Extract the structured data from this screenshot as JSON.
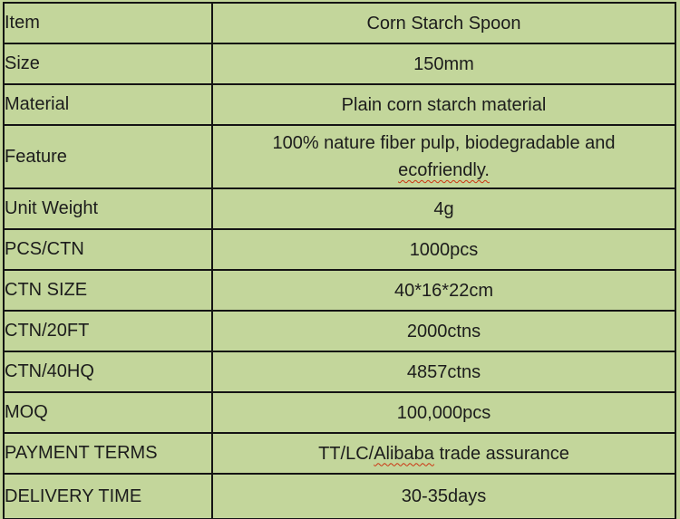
{
  "page": {
    "background_color": "#c3d69b",
    "border_color": "#141414",
    "text_color": "#1c1c1c",
    "spellcheck_underline_color": "#cc3311"
  },
  "table": {
    "rows": [
      {
        "label": "Item",
        "value": "Corn Starch Spoon"
      },
      {
        "label": "Size",
        "value": "150mm"
      },
      {
        "label": "Material",
        "value": "Plain corn starch material"
      },
      {
        "label": "Feature",
        "value": "100% nature fiber pulp, biodegradable and ecofriendly.",
        "value_before": "100% nature fiber pulp, biodegradable and",
        "value_flagged": "ecofriendly."
      },
      {
        "label": "Unit Weight",
        "value": "4g"
      },
      {
        "label": "PCS/CTN",
        "value": "1000pcs"
      },
      {
        "label": "CTN SIZE",
        "value": "40*16*22cm"
      },
      {
        "label": "CTN/20FT",
        "value": "2000ctns"
      },
      {
        "label": "CTN/40HQ",
        "value": "4857ctns"
      },
      {
        "label": "MOQ",
        "value": "100,000pcs"
      },
      {
        "label": "PAYMENT TERMS",
        "value": "TT/LC/Alibaba trade assurance",
        "value_before": "TT/LC/",
        "value_flagged": "Alibaba",
        "value_after": " trade assurance"
      },
      {
        "label": "DELIVERY TIME",
        "value": "30-35days"
      }
    ]
  }
}
